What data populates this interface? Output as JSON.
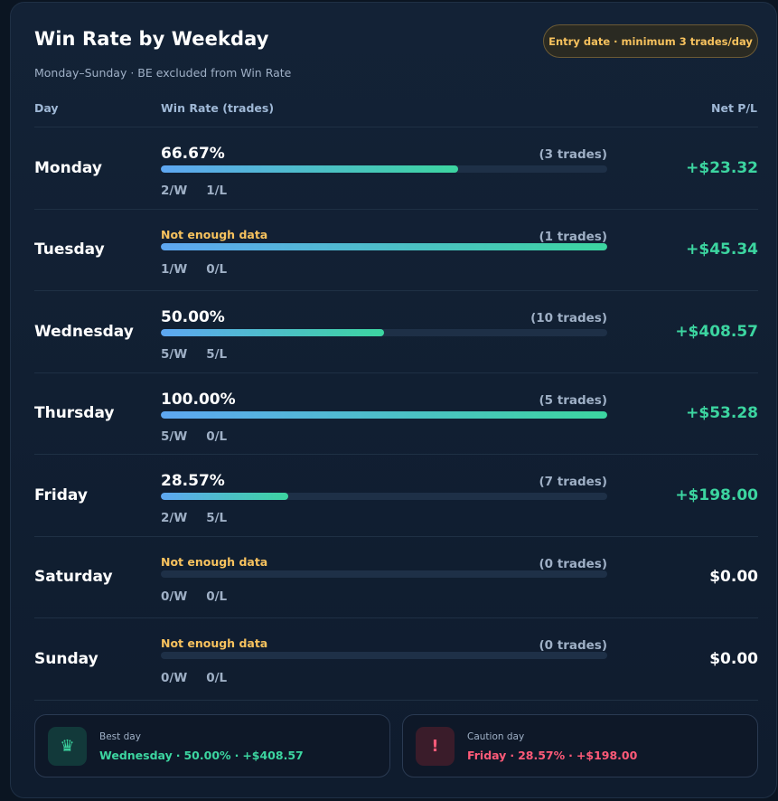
{
  "header": {
    "title": "Win Rate by Weekday",
    "subtitle": "Monday–Sunday · BE excluded from Win Rate",
    "badge": "Entry date · minimum 3 trades/day"
  },
  "columns": {
    "day": "Day",
    "win_rate": "Win Rate (trades)",
    "net_pl": "Net P/L"
  },
  "colors": {
    "positive": "#3cd5a0",
    "warning": "#f7c25e",
    "negative": "#ff5a78",
    "bar_start": "#5ea7f2",
    "bar_end": "#3cd5a0"
  },
  "rows": [
    {
      "day": "Monday",
      "win_rate": "66.67%",
      "trades": "(3 trades)",
      "wins": "2/W",
      "losses": "1/L",
      "net_pl": "+$23.32",
      "fill_fraction": 0.6667,
      "enough_data": true,
      "zero": false
    },
    {
      "day": "Tuesday",
      "win_rate": "Not enough data",
      "trades": "(1 trades)",
      "wins": "1/W",
      "losses": "0/L",
      "net_pl": "+$45.34",
      "fill_fraction": 1.0,
      "enough_data": false,
      "zero": false
    },
    {
      "day": "Wednesday",
      "win_rate": "50.00%",
      "trades": "(10 trades)",
      "wins": "5/W",
      "losses": "5/L",
      "net_pl": "+$408.57",
      "fill_fraction": 0.5,
      "enough_data": true,
      "zero": false
    },
    {
      "day": "Thursday",
      "win_rate": "100.00%",
      "trades": "(5 trades)",
      "wins": "5/W",
      "losses": "0/L",
      "net_pl": "+$53.28",
      "fill_fraction": 1.0,
      "enough_data": true,
      "zero": false
    },
    {
      "day": "Friday",
      "win_rate": "28.57%",
      "trades": "(7 trades)",
      "wins": "2/W",
      "losses": "5/L",
      "net_pl": "+$198.00",
      "fill_fraction": 0.2857,
      "enough_data": true,
      "zero": false
    },
    {
      "day": "Saturday",
      "win_rate": "Not enough data",
      "trades": "(0 trades)",
      "wins": "0/W",
      "losses": "0/L",
      "net_pl": "$0.00",
      "fill_fraction": 0,
      "enough_data": false,
      "zero": true
    },
    {
      "day": "Sunday",
      "win_rate": "Not enough data",
      "trades": "(0 trades)",
      "wins": "0/W",
      "losses": "0/L",
      "net_pl": "$0.00",
      "fill_fraction": 0,
      "enough_data": false,
      "zero": true
    }
  ],
  "summary": {
    "best": {
      "icon": "crown-icon",
      "caption": "Best day",
      "day": "Wednesday",
      "sep1": "·",
      "rate": "50.00%",
      "sep2": "·",
      "pl": "+$408.57"
    },
    "caution": {
      "icon": "exclamation-icon",
      "caption": "Caution day",
      "day": "Friday",
      "sep1": "·",
      "rate": "28.57%",
      "sep2": "·",
      "pl": "+$198.00"
    }
  }
}
